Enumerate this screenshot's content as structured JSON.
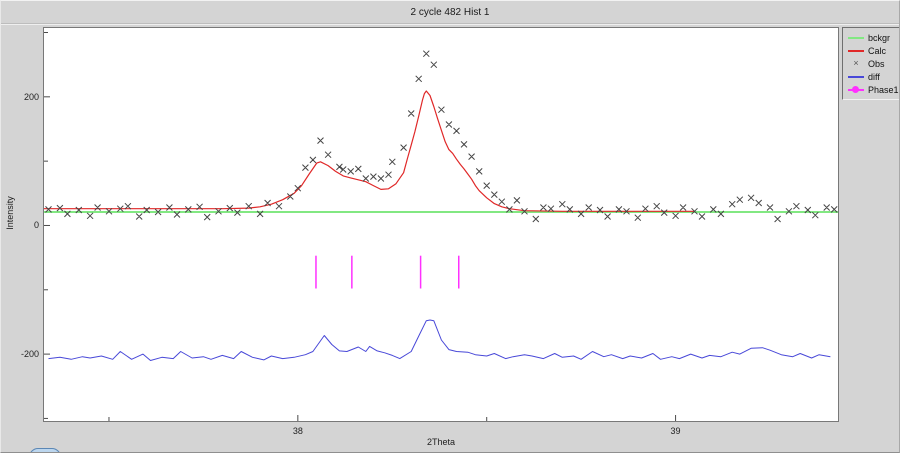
{
  "window": {
    "title": "2 cycle 482 Hist 1"
  },
  "colors": {
    "window_bg": "#d4d4d4",
    "plot_bg": "#ffffff",
    "frame": "#787878",
    "bckgr_green": "#82e882",
    "calc_red": "#e02828",
    "obs_gray": "#454545",
    "diff_blue": "#4848d8",
    "phase_magenta": "#ff30ff"
  },
  "legend": {
    "items": [
      {
        "label": "bckgr",
        "swatch": "line",
        "color": "#82e882"
      },
      {
        "label": "Calc",
        "swatch": "line",
        "color": "#e02828"
      },
      {
        "label": "Obs",
        "swatch": "x-marker",
        "color": "#555555"
      },
      {
        "label": "diff",
        "swatch": "line",
        "color": "#4848d8"
      },
      {
        "label": "Phase1",
        "swatch": "line-dot",
        "color": "#ff30ff"
      }
    ]
  },
  "chart_data": {
    "type": "line",
    "title": "2 cycle 482 Hist 1",
    "xlabel": "2Theta",
    "ylabel": "Intensity",
    "xlim": [
      37.328,
      39.43
    ],
    "ylim": [
      -304,
      307
    ],
    "grid": false,
    "legend_position": "outside-top-right",
    "x_ticks": {
      "major": [
        38,
        39
      ],
      "minor": [
        37.5,
        38.5
      ]
    },
    "y_ticks": {
      "major": [
        200,
        0,
        -200
      ],
      "minor": [
        300,
        100,
        -100,
        -300
      ]
    },
    "series": [
      {
        "name": "bckgr",
        "type": "line",
        "color": "#82e882",
        "width": 2,
        "points": [
          [
            37.328,
            21
          ],
          [
            39.43,
            21
          ]
        ]
      },
      {
        "name": "Calc",
        "type": "line",
        "color": "#e02828",
        "width": 1.2,
        "points": [
          [
            37.328,
            26
          ],
          [
            37.6,
            26
          ],
          [
            37.8,
            26
          ],
          [
            37.87,
            27
          ],
          [
            37.9,
            29
          ],
          [
            37.93,
            33
          ],
          [
            37.96,
            40
          ],
          [
            37.99,
            50
          ],
          [
            38.01,
            62
          ],
          [
            38.03,
            80
          ],
          [
            38.05,
            97
          ],
          [
            38.06,
            99
          ],
          [
            38.08,
            93
          ],
          [
            38.1,
            84
          ],
          [
            38.12,
            77
          ],
          [
            38.14,
            74
          ],
          [
            38.16,
            71
          ],
          [
            38.18,
            68
          ],
          [
            38.2,
            62
          ],
          [
            38.22,
            56
          ],
          [
            38.24,
            57
          ],
          [
            38.26,
            65
          ],
          [
            38.28,
            82
          ],
          [
            38.29,
            104
          ],
          [
            38.3,
            125
          ],
          [
            38.31,
            146
          ],
          [
            38.32,
            170
          ],
          [
            38.33,
            195
          ],
          [
            38.335,
            205
          ],
          [
            38.34,
            209
          ],
          [
            38.35,
            202
          ],
          [
            38.36,
            185
          ],
          [
            38.37,
            166
          ],
          [
            38.38,
            148
          ],
          [
            38.39,
            130
          ],
          [
            38.4,
            118
          ],
          [
            38.41,
            112
          ],
          [
            38.42,
            103
          ],
          [
            38.43,
            95
          ],
          [
            38.44,
            88
          ],
          [
            38.45,
            80
          ],
          [
            38.46,
            72
          ],
          [
            38.47,
            62
          ],
          [
            38.48,
            54
          ],
          [
            38.5,
            43
          ],
          [
            38.52,
            34
          ],
          [
            38.54,
            29
          ],
          [
            38.56,
            26
          ],
          [
            38.6,
            23
          ],
          [
            38.7,
            22
          ],
          [
            38.8,
            22
          ],
          [
            38.9,
            22
          ],
          [
            39.0,
            22
          ],
          [
            39.05,
            22
          ]
        ]
      },
      {
        "name": "Obs",
        "type": "scatter",
        "marker": "x",
        "color": "#454545",
        "points": [
          [
            37.34,
            25
          ],
          [
            37.37,
            27
          ],
          [
            37.39,
            18
          ],
          [
            37.42,
            24
          ],
          [
            37.45,
            15
          ],
          [
            37.47,
            28
          ],
          [
            37.5,
            22
          ],
          [
            37.53,
            26
          ],
          [
            37.55,
            30
          ],
          [
            37.58,
            14
          ],
          [
            37.6,
            24
          ],
          [
            37.63,
            21
          ],
          [
            37.66,
            28
          ],
          [
            37.68,
            17
          ],
          [
            37.71,
            25
          ],
          [
            37.74,
            29
          ],
          [
            37.76,
            13
          ],
          [
            37.79,
            22
          ],
          [
            37.82,
            27
          ],
          [
            37.84,
            20
          ],
          [
            37.87,
            30
          ],
          [
            37.9,
            18
          ],
          [
            37.92,
            35
          ],
          [
            37.95,
            30
          ],
          [
            37.98,
            45
          ],
          [
            38.0,
            58
          ],
          [
            38.02,
            90
          ],
          [
            38.04,
            102
          ],
          [
            38.06,
            132
          ],
          [
            38.08,
            110
          ],
          [
            38.11,
            91
          ],
          [
            38.12,
            87
          ],
          [
            38.14,
            84
          ],
          [
            38.16,
            88
          ],
          [
            38.18,
            73
          ],
          [
            38.2,
            76
          ],
          [
            38.22,
            73
          ],
          [
            38.24,
            79
          ],
          [
            38.25,
            99
          ],
          [
            38.28,
            121
          ],
          [
            38.3,
            174
          ],
          [
            38.32,
            228
          ],
          [
            38.34,
            267
          ],
          [
            38.36,
            250
          ],
          [
            38.38,
            180
          ],
          [
            38.4,
            157
          ],
          [
            38.42,
            147
          ],
          [
            38.44,
            126
          ],
          [
            38.46,
            107
          ],
          [
            38.48,
            84
          ],
          [
            38.5,
            62
          ],
          [
            38.52,
            48
          ],
          [
            38.54,
            37
          ],
          [
            38.56,
            25
          ],
          [
            38.58,
            39
          ],
          [
            38.6,
            22
          ],
          [
            38.63,
            10
          ],
          [
            38.65,
            28
          ],
          [
            38.67,
            26
          ],
          [
            38.7,
            33
          ],
          [
            38.72,
            25
          ],
          [
            38.75,
            18
          ],
          [
            38.77,
            28
          ],
          [
            38.8,
            24
          ],
          [
            38.82,
            14
          ],
          [
            38.85,
            25
          ],
          [
            38.87,
            22
          ],
          [
            38.9,
            12
          ],
          [
            38.92,
            26
          ],
          [
            38.95,
            30
          ],
          [
            38.97,
            20
          ],
          [
            39.0,
            15
          ],
          [
            39.02,
            28
          ],
          [
            39.05,
            22
          ],
          [
            39.07,
            14
          ],
          [
            39.1,
            25
          ],
          [
            39.12,
            18
          ],
          [
            39.15,
            33
          ],
          [
            39.17,
            40
          ],
          [
            39.2,
            43
          ],
          [
            39.22,
            35
          ],
          [
            39.25,
            28
          ],
          [
            39.27,
            10
          ],
          [
            39.3,
            22
          ],
          [
            39.32,
            30
          ],
          [
            39.35,
            24
          ],
          [
            39.37,
            16
          ],
          [
            39.4,
            28
          ],
          [
            39.42,
            25
          ]
        ]
      },
      {
        "name": "diff",
        "type": "line",
        "color": "#4848d8",
        "width": 1,
        "points": [
          [
            37.34,
            -207
          ],
          [
            37.37,
            -205
          ],
          [
            37.4,
            -208
          ],
          [
            37.43,
            -204
          ],
          [
            37.45,
            -206
          ],
          [
            37.48,
            -203
          ],
          [
            37.51,
            -208
          ],
          [
            37.53,
            -196
          ],
          [
            37.56,
            -208
          ],
          [
            37.59,
            -200
          ],
          [
            37.61,
            -210
          ],
          [
            37.64,
            -205
          ],
          [
            37.67,
            -207
          ],
          [
            37.69,
            -196
          ],
          [
            37.72,
            -206
          ],
          [
            37.75,
            -204
          ],
          [
            37.77,
            -208
          ],
          [
            37.8,
            -202
          ],
          [
            37.83,
            -207
          ],
          [
            37.85,
            -196
          ],
          [
            37.88,
            -205
          ],
          [
            37.91,
            -209
          ],
          [
            37.93,
            -203
          ],
          [
            37.96,
            -207
          ],
          [
            37.99,
            -205
          ],
          [
            38.02,
            -201
          ],
          [
            38.04,
            -196
          ],
          [
            38.07,
            -171
          ],
          [
            38.09,
            -185
          ],
          [
            38.11,
            -195
          ],
          [
            38.13,
            -196
          ],
          [
            38.16,
            -189
          ],
          [
            38.18,
            -196
          ],
          [
            38.19,
            -188
          ],
          [
            38.21,
            -195
          ],
          [
            38.23,
            -198
          ],
          [
            38.25,
            -202
          ],
          [
            38.27,
            -207
          ],
          [
            38.3,
            -196
          ],
          [
            38.32,
            -172
          ],
          [
            38.34,
            -148
          ],
          [
            38.35,
            -147
          ],
          [
            38.36,
            -148
          ],
          [
            38.38,
            -178
          ],
          [
            38.4,
            -193
          ],
          [
            38.42,
            -196
          ],
          [
            38.45,
            -197
          ],
          [
            38.47,
            -201
          ],
          [
            38.5,
            -203
          ],
          [
            38.52,
            -199
          ],
          [
            38.55,
            -207
          ],
          [
            38.57,
            -204
          ],
          [
            38.6,
            -201
          ],
          [
            38.62,
            -203
          ],
          [
            38.65,
            -207
          ],
          [
            38.68,
            -199
          ],
          [
            38.7,
            -205
          ],
          [
            38.73,
            -203
          ],
          [
            38.75,
            -208
          ],
          [
            38.78,
            -196
          ],
          [
            38.81,
            -204
          ],
          [
            38.83,
            -201
          ],
          [
            38.86,
            -207
          ],
          [
            38.88,
            -203
          ],
          [
            38.91,
            -206
          ],
          [
            38.94,
            -199
          ],
          [
            38.96,
            -208
          ],
          [
            38.99,
            -204
          ],
          [
            39.01,
            -207
          ],
          [
            39.04,
            -200
          ],
          [
            39.07,
            -206
          ],
          [
            39.09,
            -202
          ],
          [
            39.12,
            -204
          ],
          [
            39.15,
            -197
          ],
          [
            39.17,
            -200
          ],
          [
            39.2,
            -191
          ],
          [
            39.23,
            -190
          ],
          [
            39.25,
            -194
          ],
          [
            39.28,
            -201
          ],
          [
            39.31,
            -204
          ],
          [
            39.33,
            -199
          ],
          [
            39.36,
            -206
          ],
          [
            39.38,
            -201
          ],
          [
            39.41,
            -204
          ]
        ]
      },
      {
        "name": "Phase1",
        "type": "reflection-ticks",
        "color": "#ff30ff",
        "positions": [
          38.048,
          38.143,
          38.325,
          38.426
        ],
        "y_extent": [
          -47,
          -98
        ]
      }
    ]
  }
}
